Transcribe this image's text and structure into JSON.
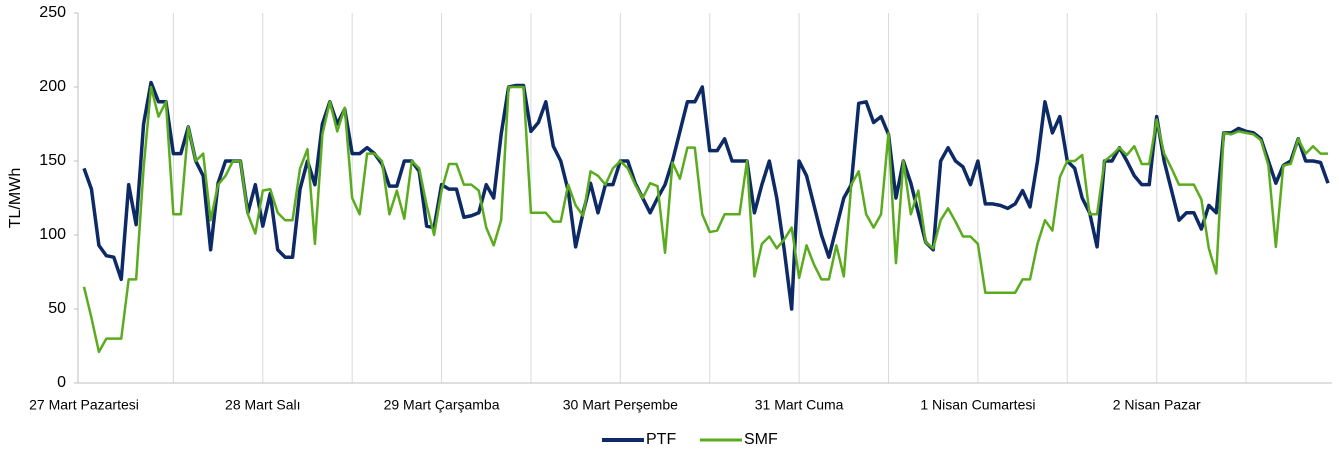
{
  "chart_data": {
    "type": "line",
    "y_label": "TL/MWh",
    "categories": [
      "27 Mart Pazartesi",
      null,
      null,
      null,
      null,
      null,
      null,
      null,
      null,
      null,
      null,
      null,
      null,
      null,
      null,
      null,
      null,
      null,
      null,
      null,
      null,
      null,
      null,
      null,
      "28 Mart Salı",
      null,
      null,
      null,
      null,
      null,
      null,
      null,
      null,
      null,
      null,
      null,
      null,
      null,
      null,
      null,
      null,
      null,
      null,
      null,
      null,
      null,
      null,
      null,
      "29 Mart Çarşamba",
      null,
      null,
      null,
      null,
      null,
      null,
      null,
      null,
      null,
      null,
      null,
      null,
      null,
      null,
      null,
      null,
      null,
      null,
      null,
      null,
      null,
      null,
      null,
      "30 Mart Perşembe",
      null,
      null,
      null,
      null,
      null,
      null,
      null,
      null,
      null,
      null,
      null,
      null,
      null,
      null,
      null,
      null,
      null,
      null,
      null,
      null,
      null,
      null,
      null,
      "31 Mart Cuma",
      null,
      null,
      null,
      null,
      null,
      null,
      null,
      null,
      null,
      null,
      null,
      null,
      null,
      null,
      null,
      null,
      null,
      null,
      null,
      null,
      null,
      null,
      null,
      "1 Nisan Cumartesi",
      null,
      null,
      null,
      null,
      null,
      null,
      null,
      null,
      null,
      null,
      null,
      null,
      null,
      null,
      null,
      null,
      null,
      null,
      null,
      null,
      null,
      null,
      null,
      "2 Nisan Pazar",
      null,
      null,
      null,
      null,
      null,
      null,
      null,
      null,
      null,
      null,
      null,
      null,
      null,
      null,
      null,
      null,
      null,
      null,
      null,
      null,
      null,
      null,
      null
    ],
    "series": [
      {
        "name": "PTF",
        "color": "#0d2a66",
        "values": [
          145,
          131,
          93,
          86,
          85,
          70,
          134,
          107,
          175,
          203,
          190,
          190,
          155,
          155,
          173,
          150,
          140,
          90,
          135,
          150,
          150,
          150,
          115,
          134,
          106,
          128,
          90,
          85,
          85,
          131,
          150,
          134,
          175,
          190,
          175,
          185,
          155,
          155,
          159,
          155,
          148,
          133,
          133,
          150,
          150,
          143,
          106,
          105,
          134,
          131,
          131,
          112,
          113,
          115,
          134,
          125,
          168,
          200,
          201,
          201,
          170,
          176,
          190,
          160,
          150,
          130,
          92,
          115,
          135,
          115,
          134,
          134,
          150,
          150,
          135,
          125,
          115,
          125,
          134,
          150,
          170,
          190,
          190,
          200,
          157,
          157,
          165,
          150,
          150,
          150,
          115,
          134,
          150,
          125,
          90,
          50,
          150,
          140,
          120,
          100,
          85,
          105,
          125,
          134,
          189,
          190,
          176,
          180,
          168,
          125,
          150,
          135,
          115,
          95,
          90,
          150,
          159,
          150,
          146,
          134,
          150,
          121,
          121,
          120,
          118,
          121,
          130,
          119,
          150,
          190,
          169,
          180,
          150,
          145,
          125,
          115,
          92,
          150,
          150,
          159,
          150,
          140,
          134,
          134,
          180,
          150,
          130,
          110,
          115,
          115,
          104,
          120,
          115,
          169,
          169,
          172,
          170,
          169,
          165,
          150,
          135,
          147,
          150,
          165,
          150,
          150,
          149,
          135
        ]
      },
      {
        "name": "SMF",
        "color": "#5aab1e",
        "values": [
          65,
          44,
          21,
          30,
          30,
          30,
          70,
          70,
          145,
          200,
          180,
          190,
          114,
          114,
          173,
          150,
          155,
          110,
          134,
          140,
          150,
          150,
          114,
          101,
          130,
          131,
          115,
          110,
          110,
          145,
          158,
          94,
          168,
          190,
          170,
          186,
          125,
          114,
          155,
          155,
          150,
          114,
          130,
          111,
          150,
          145,
          120,
          100,
          130,
          148,
          148,
          134,
          134,
          130,
          105,
          93,
          110,
          200,
          200,
          200,
          115,
          115,
          115,
          109,
          109,
          134,
          120,
          113,
          143,
          140,
          134,
          145,
          150,
          145,
          134,
          125,
          135,
          133,
          88,
          149,
          138,
          159,
          159,
          114,
          102,
          103,
          114,
          114,
          114,
          150,
          72,
          94,
          99,
          91,
          97,
          105,
          71,
          93,
          80,
          70,
          70,
          93,
          72,
          134,
          143,
          114,
          105,
          114,
          169,
          81,
          150,
          114,
          130,
          95,
          91,
          110,
          118,
          109,
          99,
          99,
          94,
          61,
          61,
          61,
          61,
          61,
          70,
          70,
          94,
          110,
          103,
          139,
          150,
          150,
          154,
          114,
          114,
          150,
          154,
          159,
          154,
          160,
          148,
          148,
          178,
          155,
          145,
          134,
          134,
          134,
          124,
          91,
          74,
          169,
          168,
          170,
          169,
          168,
          164,
          147,
          92,
          147,
          148,
          165,
          155,
          160,
          155,
          155
        ]
      }
    ],
    "ylim": [
      0,
      250
    ],
    "yticks": [
      0,
      50,
      100,
      150,
      200,
      250
    ],
    "xgrid": true,
    "legend": "bottom"
  }
}
